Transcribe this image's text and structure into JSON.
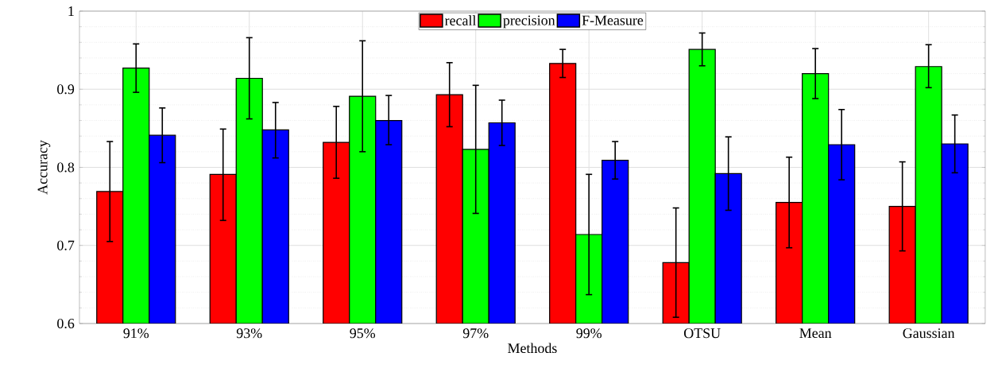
{
  "chart_data": {
    "type": "bar",
    "xlabel": "Methods",
    "ylabel": "Accuracy",
    "categories": [
      "91%",
      "93%",
      "95%",
      "97%",
      "99%",
      "OTSU",
      "Mean",
      "Gaussian"
    ],
    "series": [
      {
        "name": "recall",
        "color": "#ff0000",
        "values": [
          0.769,
          0.791,
          0.832,
          0.893,
          0.933,
          0.678,
          0.755,
          0.75
        ],
        "errors": [
          [
            0.705,
            0.833
          ],
          [
            0.732,
            0.849
          ],
          [
            0.786,
            0.878
          ],
          [
            0.852,
            0.934
          ],
          [
            0.915,
            0.951
          ],
          [
            0.608,
            0.748
          ],
          [
            0.697,
            0.813
          ],
          [
            0.693,
            0.807
          ]
        ]
      },
      {
        "name": "precision",
        "color": "#00ff00",
        "values": [
          0.927,
          0.914,
          0.891,
          0.823,
          0.714,
          0.951,
          0.92,
          0.929
        ],
        "errors": [
          [
            0.896,
            0.958
          ],
          [
            0.862,
            0.966
          ],
          [
            0.82,
            0.962
          ],
          [
            0.741,
            0.905
          ],
          [
            0.637,
            0.791
          ],
          [
            0.93,
            0.972
          ],
          [
            0.888,
            0.952
          ],
          [
            0.902,
            0.957
          ]
        ]
      },
      {
        "name": "F-Measure",
        "color": "#0000ff",
        "values": [
          0.841,
          0.848,
          0.86,
          0.857,
          0.809,
          0.792,
          0.829,
          0.83
        ],
        "errors": [
          [
            0.806,
            0.876
          ],
          [
            0.812,
            0.883
          ],
          [
            0.829,
            0.892
          ],
          [
            0.828,
            0.886
          ],
          [
            0.785,
            0.833
          ],
          [
            0.745,
            0.839
          ],
          [
            0.784,
            0.874
          ],
          [
            0.793,
            0.867
          ]
        ]
      }
    ],
    "ylim": [
      0.6,
      1
    ],
    "yticks": [
      0.6,
      0.7,
      0.8,
      0.9,
      1
    ],
    "grid": true,
    "legend": "top"
  }
}
